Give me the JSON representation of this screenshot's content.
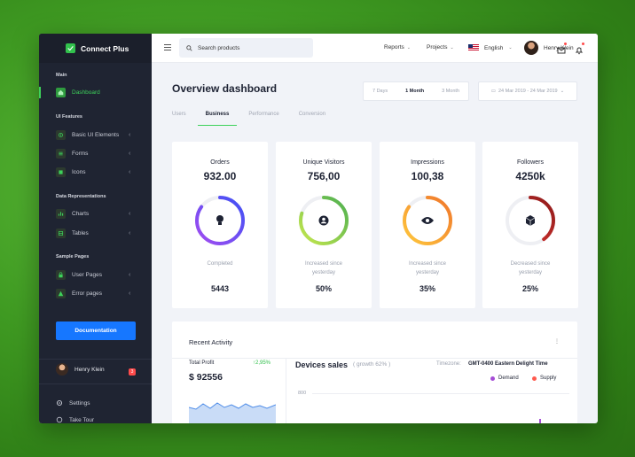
{
  "brand": {
    "name": "Connect Plus"
  },
  "sidebar": {
    "sections": [
      {
        "label": "Main"
      },
      {
        "label": "UI Features"
      },
      {
        "label": "Data Representations"
      },
      {
        "label": "Sample Pages"
      }
    ],
    "items": [
      {
        "label": "Dashboard",
        "icon": "home-icon"
      },
      {
        "label": "Basic UI Elements",
        "icon": "crosshair-icon"
      },
      {
        "label": "Forms",
        "icon": "list-icon"
      },
      {
        "label": "Icons",
        "icon": "grid-icon"
      },
      {
        "label": "Charts",
        "icon": "bar-chart-icon"
      },
      {
        "label": "Tables",
        "icon": "table-icon"
      },
      {
        "label": "User Pages",
        "icon": "lock-icon"
      },
      {
        "label": "Error pages",
        "icon": "alert-icon"
      }
    ],
    "documentation": "Documentation",
    "user": {
      "name": "Henry Klein",
      "badge": "3"
    },
    "settings": "Settings",
    "take_tour": "Take Tour"
  },
  "topbar": {
    "search_placeholder": "Search products",
    "reports": "Reports",
    "projects": "Projects",
    "language": "English",
    "user_name": "Henry Klein"
  },
  "main": {
    "title": "Overview dashboard",
    "periods": [
      "7 Days",
      "1 Month",
      "3 Month"
    ],
    "active_period": "1 Month",
    "date_range": "24 Mar 2019 - 24 Mar 2019",
    "tabs": [
      "Users",
      "Business",
      "Performance",
      "Conversion"
    ],
    "active_tab": "Business",
    "cards": [
      {
        "title": "Orders",
        "value": "932.00",
        "desc": "Completed",
        "foot": "5443",
        "progress": 0.85,
        "icon": "lightbulb-icon"
      },
      {
        "title": "Unique Visitors",
        "value": "756,00",
        "desc": "Increased since yesterday",
        "foot": "50%",
        "progress": 0.8,
        "icon": "user-circle-icon"
      },
      {
        "title": "Impressions",
        "value": "100,38",
        "desc": "Increased since yesterday",
        "foot": "35%",
        "progress": 0.85,
        "icon": "eye-icon"
      },
      {
        "title": "Followers",
        "value": "4250k",
        "desc": "Decreased since yesterday",
        "foot": "25%",
        "progress": 0.4,
        "icon": "cube-icon"
      }
    ],
    "recent": {
      "title": "Recent Activity",
      "more": "⋮",
      "total_profit_label": "Total Profit",
      "total_profit_change": "↑2,95%",
      "total_profit_value": "$ 92556",
      "devices_sales_title": "Devices sales",
      "devices_sales_growth": "( growth 62% )",
      "timezone_label": "Timezone:",
      "timezone_value": "GMT-0400 Eastern Delight Time",
      "legend": [
        {
          "label": "Demand",
          "color": "#a54cd6"
        },
        {
          "label": "Supply",
          "color": "#ff5a4e"
        }
      ],
      "axis_label": "800"
    }
  },
  "colors": {
    "accent": "#3dd15a",
    "primary_button": "#1677ff",
    "ring_orders": "#5b4ff0",
    "ring_visitors": "#8bc34a",
    "ring_impressions": "#f5a623",
    "ring_followers": "#d32f2f"
  }
}
